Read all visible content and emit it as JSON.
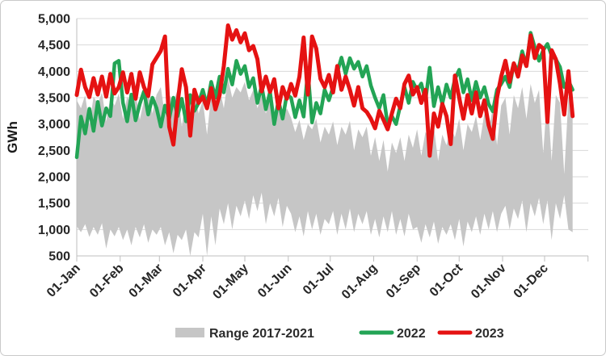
{
  "chart": {
    "ylabel": "GWh",
    "legend": [
      {
        "label": "Range 2017-2021",
        "swatch": "band",
        "color": "#c6c6c6"
      },
      {
        "label": "2022",
        "swatch": "line",
        "color": "#23a455"
      },
      {
        "label": "2023",
        "swatch": "line",
        "color": "#e51212"
      }
    ]
  },
  "chart_data": {
    "type": "line",
    "title": "",
    "xlabel": "",
    "ylabel": "GWh",
    "ylim": [
      500,
      5000
    ],
    "ytick_step": 500,
    "ytick_labels": [
      "500",
      "1,000",
      "1,500",
      "2,000",
      "2,500",
      "3,000",
      "3,500",
      "4,000",
      "4,500",
      "5,000"
    ],
    "grid": "horizontal",
    "legend_position": "bottom",
    "x_unit": "day_of_year",
    "xtick_days": [
      1,
      32,
      60,
      91,
      121,
      152,
      182,
      213,
      244,
      274,
      305,
      335
    ],
    "xtick_labels": [
      "01-Jan",
      "01-Feb",
      "01-Mar",
      "01-Apr",
      "01-May",
      "01-Jun",
      "01-Jul",
      "01-Aug",
      "01-Sep",
      "01-Oct",
      "01-Nov",
      "01-Dec"
    ],
    "days": [
      1,
      4,
      7,
      10,
      13,
      16,
      19,
      22,
      25,
      28,
      31,
      34,
      37,
      40,
      43,
      46,
      49,
      52,
      55,
      58,
      61,
      64,
      67,
      70,
      73,
      76,
      79,
      82,
      85,
      88,
      91,
      94,
      97,
      100,
      103,
      106,
      109,
      112,
      115,
      118,
      121,
      124,
      127,
      130,
      133,
      136,
      139,
      142,
      145,
      148,
      151,
      154,
      157,
      160,
      163,
      166,
      169,
      172,
      175,
      178,
      181,
      184,
      187,
      190,
      193,
      196,
      199,
      202,
      205,
      208,
      211,
      214,
      217,
      220,
      223,
      226,
      229,
      232,
      235,
      238,
      241,
      244,
      247,
      250,
      253,
      256,
      259,
      262,
      265,
      268,
      271,
      274,
      277,
      280,
      283,
      286,
      289,
      292,
      295,
      298,
      301,
      304,
      307,
      310,
      313,
      316,
      319,
      322,
      325,
      328,
      331,
      334,
      337,
      340,
      343,
      346,
      349,
      352,
      355
    ],
    "band": {
      "name": "Range 2017-2021",
      "color": "#c6c6c6",
      "max": [
        3450,
        3300,
        3550,
        2980,
        3520,
        3380,
        3600,
        3050,
        3500,
        3350,
        3580,
        3100,
        3520,
        3350,
        3600,
        3080,
        3450,
        3620,
        3200,
        3560,
        3700,
        3150,
        3560,
        3420,
        3650,
        2950,
        3500,
        3300,
        3600,
        3200,
        3450,
        2800,
        3550,
        3400,
        3680,
        3300,
        3870,
        3500,
        3700,
        3600,
        3800,
        3450,
        3650,
        3300,
        3550,
        3200,
        3480,
        3050,
        3380,
        3150,
        3300,
        3120,
        2850,
        3080,
        2700,
        3000,
        2900,
        3100,
        2650,
        2950,
        2800,
        3050,
        2600,
        2950,
        2800,
        3060,
        2500,
        2900,
        2750,
        2950,
        2400,
        2750,
        2300,
        2700,
        2100,
        2650,
        2450,
        2750,
        2300,
        2800,
        2550,
        2900,
        2400,
        2850,
        2700,
        2950,
        2300,
        2800,
        2600,
        2950,
        2750,
        3100,
        2500,
        3000,
        2850,
        3150,
        2700,
        3200,
        2900,
        3300,
        2600,
        3350,
        3500,
        2800,
        3550,
        3300,
        3700,
        3100,
        3760,
        3400,
        3650,
        2450,
        3600,
        2300,
        3550,
        3400,
        2050,
        3500,
        3580
      ],
      "min": [
        1060,
        950,
        1100,
        860,
        1050,
        900,
        1120,
        640,
        1000,
        870,
        1050,
        800,
        1000,
        700,
        1050,
        850,
        1100,
        750,
        1000,
        900,
        1050,
        700,
        950,
        550,
        900,
        800,
        1000,
        500,
        950,
        850,
        1300,
        500,
        1250,
        700,
        1400,
        1100,
        1500,
        1000,
        1450,
        1250,
        1550,
        1200,
        1650,
        1350,
        1700,
        1100,
        1500,
        1250,
        1600,
        1050,
        1450,
        1300,
        950,
        1250,
        870,
        1350,
        1000,
        1300,
        900,
        1200,
        1100,
        1350,
        900,
        1300,
        1000,
        1400,
        950,
        1300,
        1100,
        1350,
        900,
        1200,
        850,
        1250,
        950,
        1350,
        900,
        1200,
        870,
        1300,
        1000,
        1050,
        750,
        1100,
        850,
        1150,
        730,
        1050,
        900,
        1100,
        800,
        1200,
        680,
        1150,
        950,
        1250,
        900,
        1300,
        1000,
        1350,
        950,
        1300,
        1450,
        1000,
        1400,
        1200,
        1550,
        950,
        1500,
        1250,
        1600,
        1100,
        1550,
        800,
        1500,
        1200,
        1650,
        1000,
        950
      ]
    },
    "series": [
      {
        "name": "2022",
        "color": "#23a455",
        "width": 4.5,
        "values": [
          2370,
          3140,
          2820,
          3290,
          2870,
          3420,
          2970,
          3300,
          3150,
          4150,
          4200,
          3400,
          3050,
          3560,
          3070,
          3380,
          3620,
          3180,
          3500,
          3300,
          2950,
          3350,
          3100,
          3500,
          3150,
          3480,
          3050,
          3550,
          3250,
          3400,
          3650,
          3350,
          3800,
          3500,
          3900,
          3600,
          4050,
          3750,
          4200,
          3950,
          4100,
          3700,
          3870,
          3400,
          3720,
          3280,
          3610,
          3000,
          3450,
          3100,
          3560,
          3500,
          3130,
          3450,
          3140,
          4010,
          3030,
          3400,
          3200,
          3650,
          3450,
          3700,
          3980,
          4260,
          3950,
          4250,
          4050,
          4180,
          3900,
          4100,
          3730,
          3500,
          3300,
          3550,
          2980,
          3150,
          3000,
          3350,
          3700,
          3400,
          3800,
          3640,
          3770,
          3450,
          4070,
          3340,
          3700,
          3380,
          3750,
          3500,
          3850,
          4030,
          3600,
          3850,
          3450,
          3800,
          3500,
          3700,
          3380,
          3240,
          3650,
          3760,
          3900,
          3700,
          4150,
          4000,
          4380,
          4100,
          4730,
          4450,
          4200,
          4400,
          4520,
          4300,
          4230,
          4080,
          3700,
          3820,
          3650
        ]
      },
      {
        "name": "2023",
        "color": "#e51212",
        "width": 5,
        "values": [
          3550,
          4030,
          3700,
          3510,
          3870,
          3560,
          3900,
          3520,
          3950,
          3580,
          3700,
          3980,
          3600,
          3950,
          3480,
          3980,
          3700,
          3530,
          4130,
          4260,
          4390,
          4660,
          2950,
          2610,
          3400,
          4040,
          3700,
          2780,
          3650,
          3400,
          3520,
          3300,
          3680,
          3280,
          3550,
          4100,
          4870,
          4600,
          4780,
          4550,
          4720,
          4400,
          4480,
          4230,
          3620,
          3900,
          3610,
          3850,
          3300,
          3700,
          3480,
          3760,
          3540,
          3900,
          4640,
          3560,
          4660,
          4430,
          3860,
          3700,
          3930,
          3600,
          4100,
          3650,
          3900,
          3650,
          3350,
          3700,
          3300,
          3230,
          3100,
          2920,
          3250,
          3080,
          2900,
          3200,
          3480,
          3300,
          3760,
          3920,
          3560,
          3700,
          3400,
          3650,
          2400,
          3200,
          2950,
          3380,
          3150,
          2620,
          3920,
          3500,
          3100,
          3550,
          3200,
          3600,
          3150,
          3450,
          2980,
          2720,
          3500,
          3900,
          4200,
          3800,
          4150,
          3900,
          4300,
          4100,
          4680,
          4250,
          4500,
          4430,
          3040,
          4400,
          4230,
          3760,
          3180,
          4000,
          3150
        ]
      }
    ]
  }
}
